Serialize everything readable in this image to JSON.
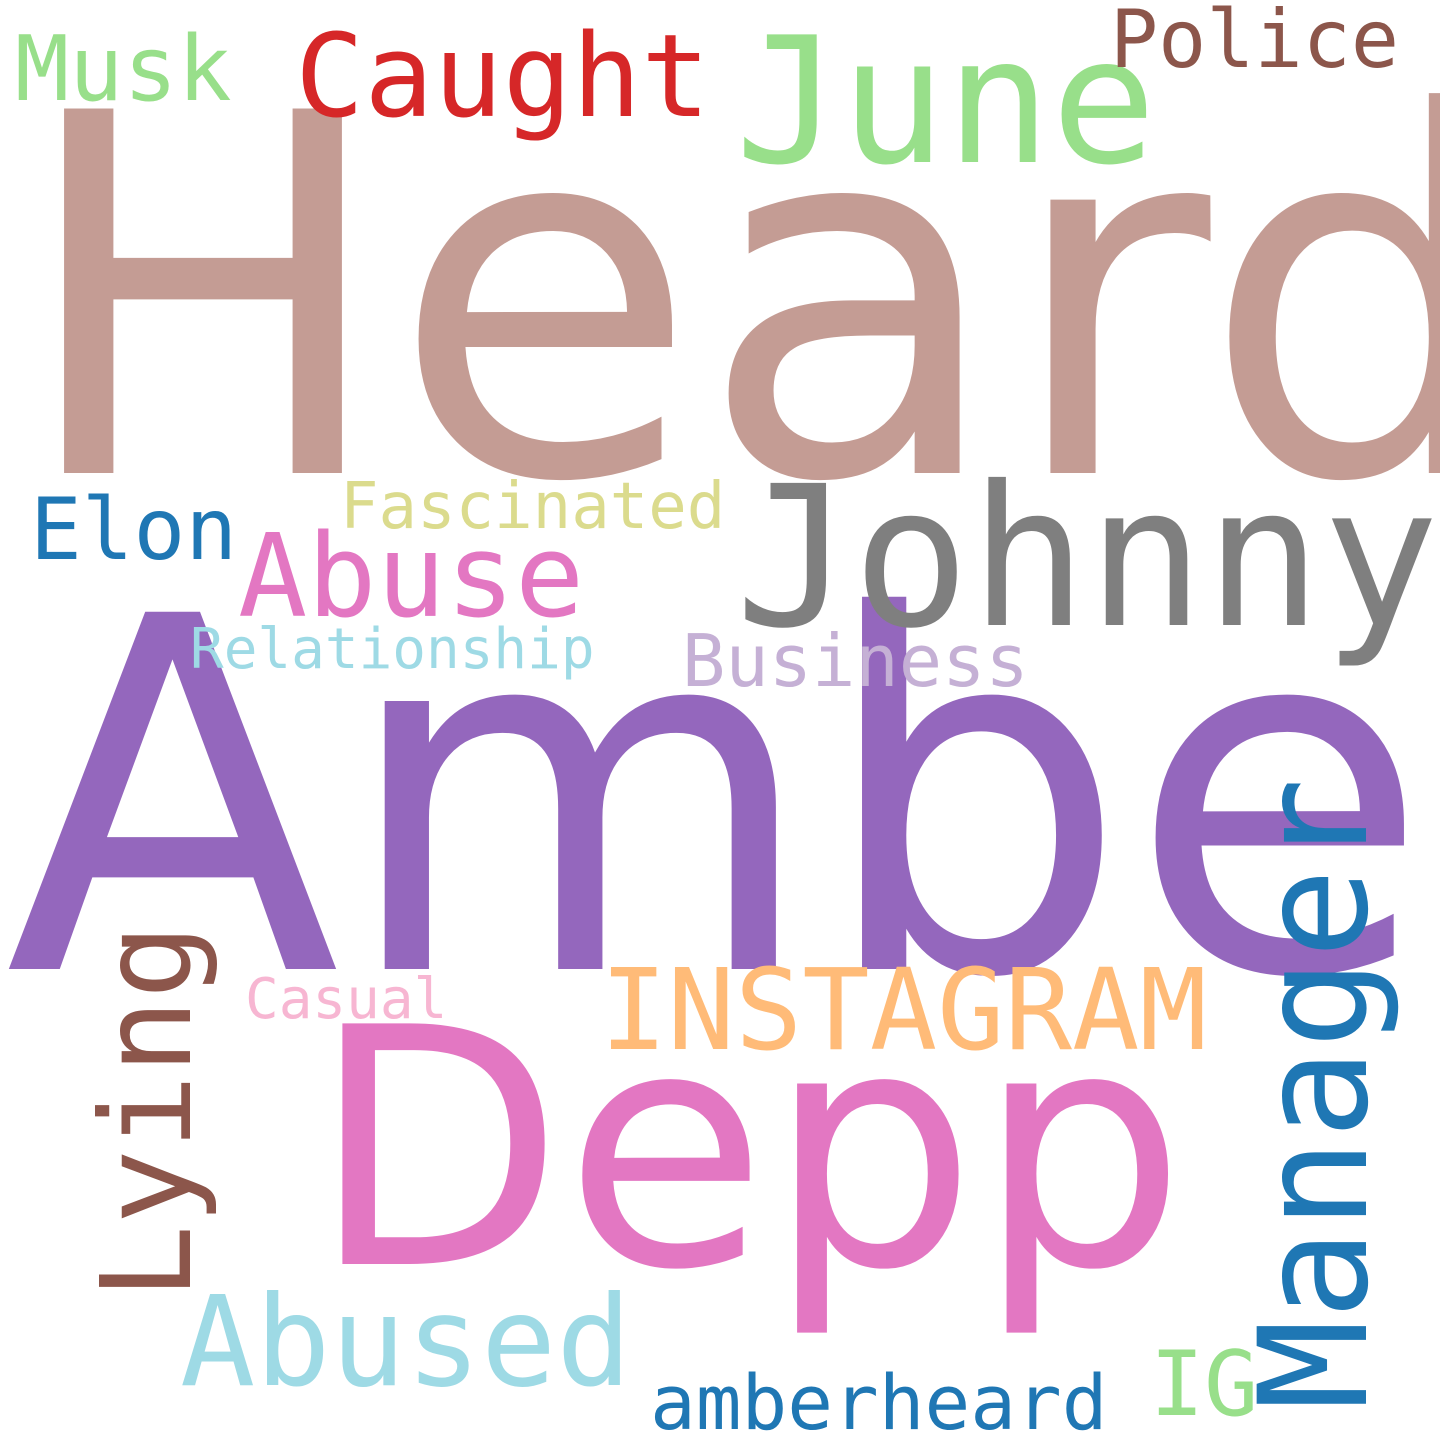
{
  "words": {
    "heard": {
      "text": "Heard",
      "color": "#c49c94"
    },
    "amber": {
      "text": "Amber",
      "color": "#9467bd"
    },
    "depp": {
      "text": "Depp",
      "color": "#e377c2"
    },
    "johnny": {
      "text": "Johnny",
      "color": "#7f7f7f"
    },
    "june": {
      "text": "June",
      "color": "#98df8a"
    },
    "caught": {
      "text": "Caught",
      "color": "#d62728"
    },
    "musk": {
      "text": "Musk",
      "color": "#98df8a"
    },
    "police": {
      "text": "Police",
      "color": "#8c564b"
    },
    "abuse": {
      "text": "Abuse",
      "color": "#e377c2"
    },
    "abused": {
      "text": "Abused",
      "color": "#9edae5"
    },
    "instagram": {
      "text": "INSTAGRAM",
      "color": "#ffbb78"
    },
    "manager": {
      "text": "Manager",
      "color": "#1f77b4"
    },
    "lying": {
      "text": "Lying",
      "color": "#8c564b"
    },
    "elon": {
      "text": "Elon",
      "color": "#1f77b4"
    },
    "fascinated": {
      "text": "Fascinated",
      "color": "#dbdb8d"
    },
    "relationship": {
      "text": "Relationship",
      "color": "#9edae5"
    },
    "business": {
      "text": "Business",
      "color": "#c5b0d5"
    },
    "casual": {
      "text": "Casual",
      "color": "#f7b6d2"
    },
    "amberheard": {
      "text": "amberheard",
      "color": "#1f77b4"
    },
    "ig": {
      "text": "IG",
      "color": "#98df8a"
    }
  }
}
